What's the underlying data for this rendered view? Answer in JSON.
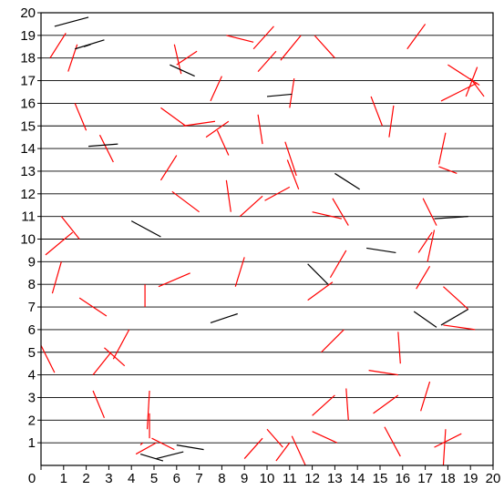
{
  "chart_data": {
    "type": "scatter",
    "title": "",
    "xlabel": "",
    "ylabel": "",
    "xlim": [
      0,
      20
    ],
    "ylim": [
      0,
      20
    ],
    "x_ticks": [
      "0",
      "1",
      "2",
      "3",
      "4",
      "5",
      "6",
      "7",
      "8",
      "9",
      "10",
      "11",
      "12",
      "13",
      "14",
      "15",
      "16",
      "17",
      "18",
      "19",
      "20"
    ],
    "y_ticks": [
      "0",
      "1",
      "2",
      "3",
      "4",
      "5",
      "6",
      "7",
      "8",
      "9",
      "10",
      "11",
      "12",
      "13",
      "14",
      "15",
      "16",
      "17",
      "18",
      "19",
      "20"
    ],
    "grid": "horizontal",
    "colors": {
      "red": "#ff0000",
      "black": "#000000",
      "grid": "#000000",
      "axis": "#000000"
    },
    "series": [
      {
        "color": "red",
        "segments": [
          [
            0.4,
            18,
            1.1,
            19.1
          ],
          [
            1.2,
            17.4,
            1.6,
            18.6
          ],
          [
            1.5,
            16,
            2.0,
            14.8
          ],
          [
            2.6,
            14.6,
            3.2,
            13.4
          ],
          [
            5.3,
            15.8,
            6.4,
            15.0
          ],
          [
            6.3,
            15.0,
            7.7,
            15.2
          ],
          [
            7.3,
            14.5,
            8.3,
            15.2
          ],
          [
            7.8,
            14.8,
            8.3,
            13.7
          ],
          [
            9.6,
            15.5,
            9.8,
            14.2
          ],
          [
            10.8,
            14.3,
            11.3,
            12.8
          ],
          [
            10.9,
            13.5,
            11.4,
            12.2
          ],
          [
            5.3,
            12.6,
            6.0,
            13.7
          ],
          [
            5.8,
            12.1,
            7.0,
            11.2
          ],
          [
            8.2,
            12.6,
            8.4,
            11.2
          ],
          [
            8.8,
            11.0,
            9.8,
            11.9
          ],
          [
            9.9,
            11.7,
            11.0,
            12.3
          ],
          [
            11.0,
            15.8,
            11.2,
            17.1
          ],
          [
            12.0,
            11.2,
            13.3,
            10.9
          ],
          [
            12.9,
            11.8,
            13.6,
            10.6
          ],
          [
            5.9,
            18.6,
            6.2,
            17.3
          ],
          [
            6.0,
            17.7,
            6.9,
            18.3
          ],
          [
            8.2,
            19.0,
            9.4,
            18.7
          ],
          [
            9.4,
            18.4,
            10.3,
            19.4
          ],
          [
            9.6,
            17.4,
            10.4,
            18.3
          ],
          [
            10.6,
            17.9,
            11.5,
            19.0
          ],
          [
            12.1,
            19.0,
            13.0,
            18.0
          ],
          [
            7.5,
            16.1,
            8.0,
            17.2
          ],
          [
            14.6,
            16.3,
            15.1,
            15.0
          ],
          [
            15.6,
            15.9,
            15.4,
            14.5
          ],
          [
            16.2,
            18.4,
            17.0,
            19.5
          ],
          [
            17.6,
            13.2,
            18.4,
            12.9
          ],
          [
            17.9,
            14.7,
            17.6,
            13.3
          ],
          [
            17.7,
            16.1,
            19.3,
            16.9
          ],
          [
            18.0,
            17.7,
            19.4,
            16.8
          ],
          [
            18.8,
            16.3,
            19.3,
            17.6
          ],
          [
            19.0,
            17.1,
            19.6,
            16.3
          ],
          [
            0.2,
            9.3,
            1.4,
            10.3
          ],
          [
            0.9,
            11.0,
            1.7,
            10.0
          ],
          [
            0.5,
            7.6,
            0.9,
            9.0
          ],
          [
            1.7,
            7.4,
            2.9,
            6.6
          ],
          [
            2.3,
            4.0,
            3.1,
            5.0
          ],
          [
            2.8,
            5.2,
            3.7,
            4.4
          ],
          [
            3.2,
            4.7,
            3.9,
            6.0
          ],
          [
            0.0,
            5.3,
            0.6,
            4.1
          ],
          [
            4.6,
            7.0,
            4.6,
            8.0
          ],
          [
            5.2,
            7.9,
            6.6,
            8.5
          ],
          [
            8.6,
            7.9,
            9.0,
            9.2
          ],
          [
            11.8,
            7.3,
            12.9,
            8.1
          ],
          [
            12.8,
            8.3,
            13.5,
            9.5
          ],
          [
            12.4,
            5.0,
            13.4,
            6.0
          ],
          [
            16.7,
            9.4,
            17.3,
            10.3
          ],
          [
            17.1,
            9.0,
            17.4,
            10.4
          ],
          [
            16.6,
            7.8,
            17.2,
            8.8
          ],
          [
            16.9,
            11.8,
            17.5,
            10.6
          ],
          [
            17.8,
            7.9,
            18.9,
            6.9
          ],
          [
            17.8,
            6.2,
            19.2,
            6.0
          ],
          [
            15.8,
            5.9,
            15.9,
            4.5
          ],
          [
            14.5,
            4.2,
            15.8,
            4.0
          ],
          [
            14.7,
            2.3,
            15.8,
            3.1
          ],
          [
            16.8,
            2.4,
            17.2,
            3.7
          ],
          [
            12.0,
            2.2,
            13.0,
            3.1
          ],
          [
            13.5,
            3.4,
            13.6,
            2.0
          ],
          [
            12.0,
            1.5,
            13.1,
            1.0
          ],
          [
            15.2,
            1.7,
            15.9,
            0.4
          ],
          [
            17.4,
            0.8,
            18.6,
            1.4
          ],
          [
            17.8,
            0.0,
            17.9,
            1.6
          ],
          [
            10.4,
            0.2,
            11.0,
            1.0
          ],
          [
            11.1,
            1.3,
            11.7,
            0.0
          ],
          [
            10.0,
            1.6,
            10.7,
            0.8
          ],
          [
            9.0,
            0.3,
            9.8,
            1.2
          ],
          [
            4.2,
            0.5,
            5.1,
            1.0
          ],
          [
            4.9,
            1.2,
            5.9,
            0.7
          ],
          [
            4.8,
            3.3,
            4.7,
            1.6
          ],
          [
            4.8,
            1.2,
            4.8,
            2.3
          ],
          [
            2.3,
            3.3,
            2.8,
            2.1
          ],
          [
            4.4,
            0.9,
            4.5,
            1.0
          ]
        ]
      },
      {
        "color": "black",
        "segments": [
          [
            0.6,
            19.4,
            2.1,
            19.8
          ],
          [
            1.5,
            18.4,
            2.8,
            18.8
          ],
          [
            1.9,
            18.5,
            2.2,
            18.6
          ],
          [
            5.7,
            17.7,
            6.8,
            17.2
          ],
          [
            10.0,
            16.3,
            11.1,
            16.4
          ],
          [
            2.1,
            14.1,
            3.4,
            14.2
          ],
          [
            13.0,
            12.9,
            14.1,
            12.2
          ],
          [
            4.0,
            10.8,
            5.3,
            10.1
          ],
          [
            17.4,
            10.9,
            18.9,
            11.0
          ],
          [
            14.4,
            9.6,
            15.7,
            9.4
          ],
          [
            11.8,
            8.9,
            12.7,
            8.0
          ],
          [
            7.5,
            6.3,
            8.7,
            6.7
          ],
          [
            16.5,
            6.8,
            17.5,
            6.1
          ],
          [
            17.7,
            6.2,
            18.9,
            6.9
          ],
          [
            6.0,
            0.9,
            7.2,
            0.7
          ],
          [
            5.1,
            0.3,
            6.3,
            0.6
          ],
          [
            4.4,
            0.5,
            5.4,
            0.2
          ]
        ]
      }
    ]
  }
}
